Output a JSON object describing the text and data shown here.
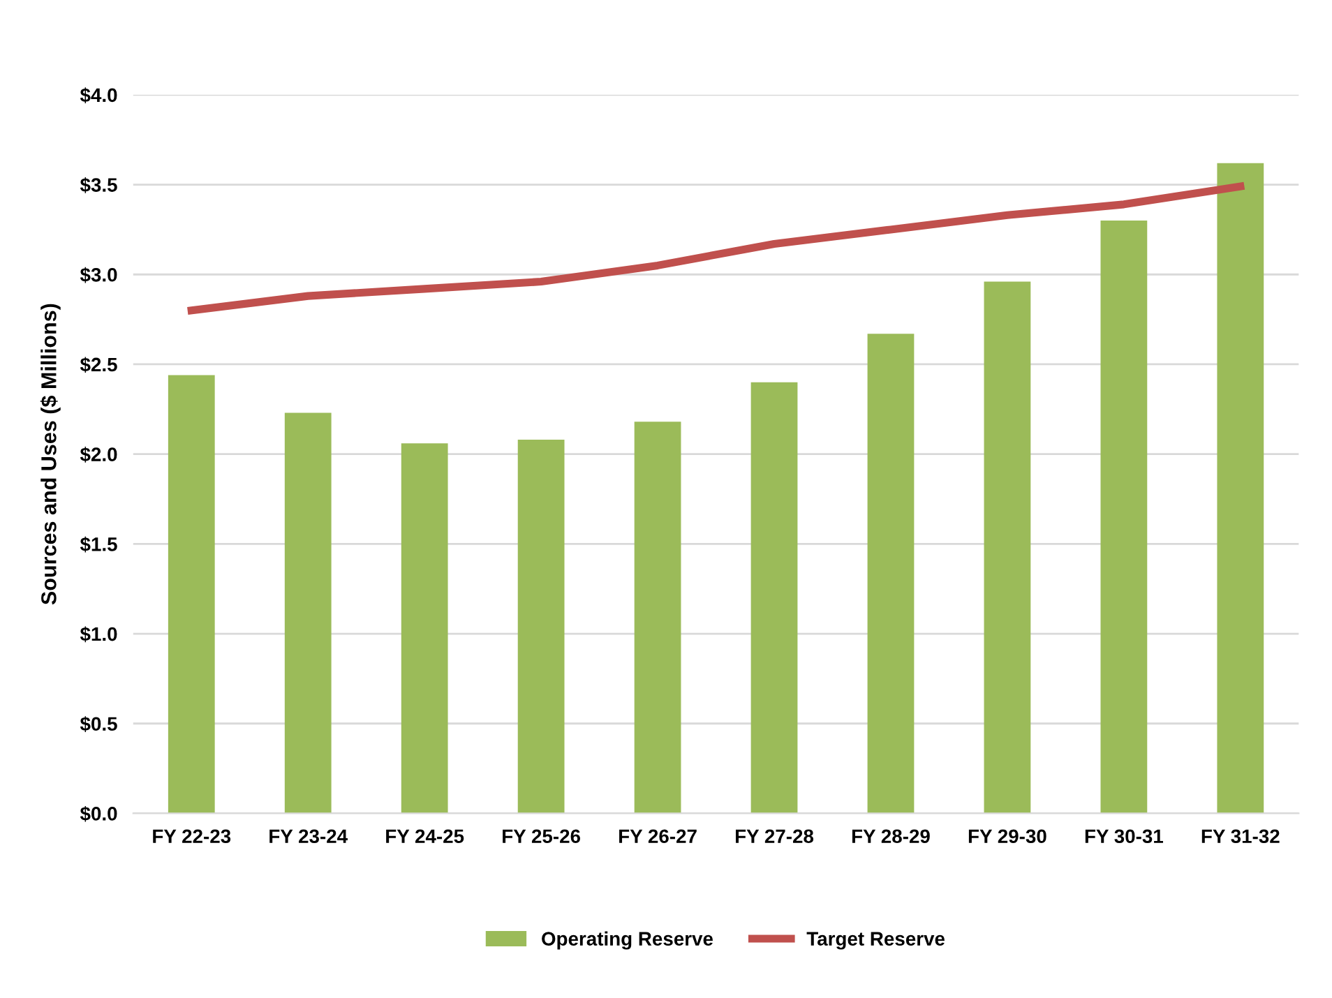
{
  "chart_data": {
    "type": "bar",
    "ylabel": "Sources and Uses ($ Millions)",
    "categories": [
      "FY 22-23",
      "FY 23-24",
      "FY 24-25",
      "FY 25-26",
      "FY 26-27",
      "FY 27-28",
      "FY 28-29",
      "FY 29-30",
      "FY 30-31",
      "FY 31-32"
    ],
    "series": [
      {
        "name": "Operating Reserve",
        "color": "#9bbb59",
        "values": [
          2.44,
          2.23,
          2.06,
          2.08,
          2.18,
          2.4,
          2.67,
          2.96,
          3.3,
          3.62
        ]
      },
      {
        "name": "Target Reserve",
        "type": "line",
        "color": "#c0504d",
        "values": [
          2.8,
          2.88,
          2.92,
          2.96,
          3.05,
          3.17,
          3.25,
          3.33,
          3.39,
          3.49
        ]
      }
    ],
    "ylim": [
      0,
      4.0
    ],
    "yticks": [
      {
        "value": 0,
        "label": "$0.0"
      },
      {
        "value": 0.5,
        "label": "$0.5"
      },
      {
        "value": 1.0,
        "label": "$1.0"
      },
      {
        "value": 1.5,
        "label": "$1.5"
      },
      {
        "value": 2.0,
        "label": "$2.0"
      },
      {
        "value": 2.5,
        "label": "$2.5"
      },
      {
        "value": 3.0,
        "label": "$3.0"
      },
      {
        "value": 3.5,
        "label": "$3.5"
      },
      {
        "value": 4.0,
        "label": "$4.0"
      }
    ],
    "grid": "y",
    "legend": "bottom",
    "marker": "none",
    "line_style": "solid"
  }
}
